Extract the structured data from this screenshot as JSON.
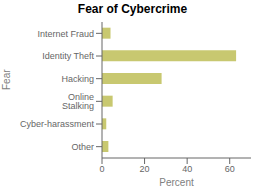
{
  "chart_data": {
    "type": "bar",
    "title": "Fear of Cybercrime",
    "orientation": "horizontal",
    "categories": [
      "Internet Fraud",
      "Identity Theft",
      "Hacking",
      "Online Stalking",
      "Cyber-harassment",
      "Other"
    ],
    "values": [
      4.0,
      63.0,
      28.0,
      5.0,
      2.0,
      3.0
    ],
    "color": "#c8c870",
    "xlabel": "Percent",
    "ylabel": "Fear",
    "xlim": [
      0,
      70
    ],
    "xticks": [
      0,
      20,
      40,
      60
    ],
    "grid": false
  }
}
